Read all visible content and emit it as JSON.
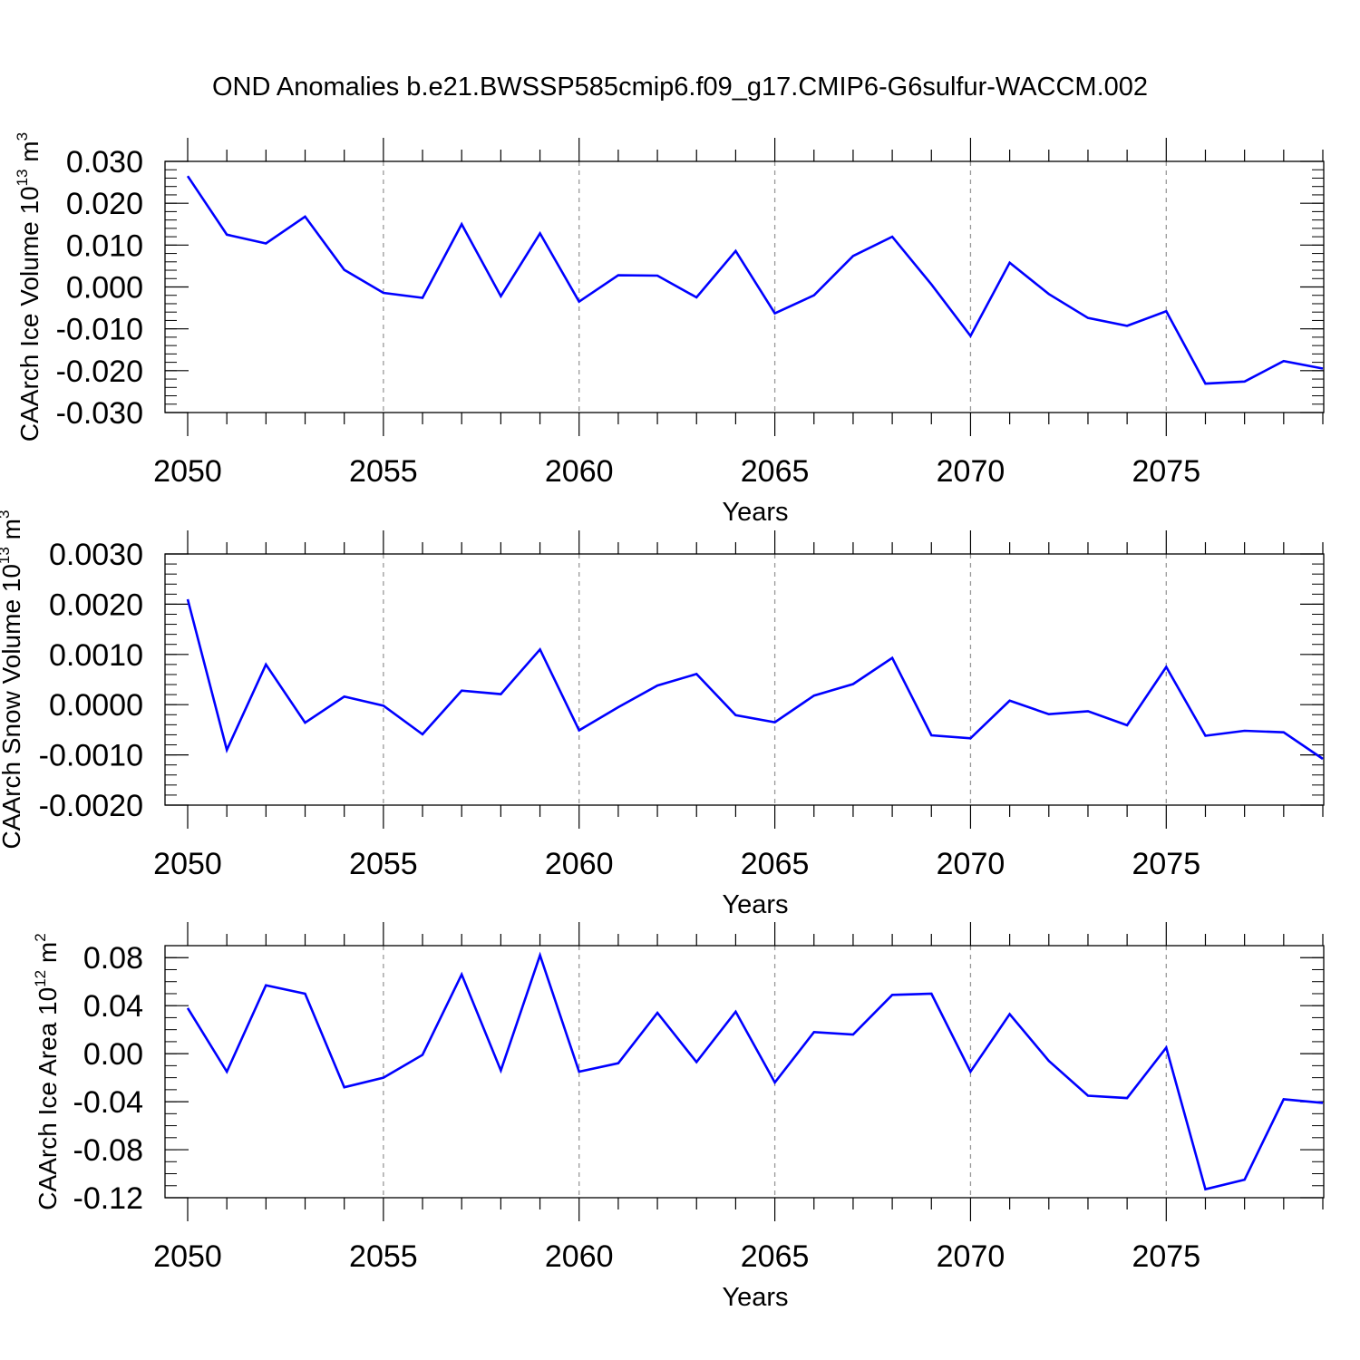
{
  "figure": {
    "title": "OND Anomalies b.e21.BWSSP585cmip6.f09_g17.CMIP6-G6sulfur-WACCM.002",
    "line_color": "#0000ff"
  },
  "chart_data": [
    {
      "type": "line",
      "title": "",
      "xlabel": "Years",
      "ylabel": "CAArch Ice Volume 10",
      "ylabel_exp": "13",
      "ylabel_unit": " m",
      "ylabel_unit_exp": "3",
      "xlim": [
        2050,
        2079
      ],
      "ylim": [
        -0.03,
        0.03
      ],
      "x_ticks": [
        2050,
        2055,
        2060,
        2065,
        2070,
        2075
      ],
      "x_tick_labels": [
        "2050",
        "2055",
        "2060",
        "2065",
        "2070",
        "2075"
      ],
      "y_ticks": [
        0.03,
        0.02,
        0.01,
        0.0,
        -0.01,
        -0.02,
        -0.03
      ],
      "y_tick_labels": [
        "0.030",
        "0.020",
        "0.010",
        "0.000",
        "-0.010",
        "-0.020",
        "-0.030"
      ],
      "y_minor_step": 0.002,
      "grid": "vertical dashed at major x ticks",
      "x": [
        2050,
        2051,
        2052,
        2053,
        2054,
        2055,
        2056,
        2057,
        2058,
        2059,
        2060,
        2061,
        2062,
        2063,
        2064,
        2065,
        2066,
        2067,
        2068,
        2069,
        2070,
        2071,
        2072,
        2073,
        2074,
        2075,
        2076,
        2077,
        2078,
        2079
      ],
      "series": [
        {
          "values": [
            0.0265,
            0.0125,
            0.0104,
            0.0168,
            0.0041,
            -0.0014,
            -0.0026,
            0.015,
            -0.0022,
            0.0128,
            -0.0035,
            0.0028,
            0.0027,
            -0.0025,
            0.0086,
            -0.0063,
            -0.002,
            0.0074,
            0.012,
            0.0006,
            -0.0117,
            0.0058,
            -0.0017,
            -0.0074,
            -0.0093,
            -0.0058,
            -0.0231,
            -0.0226,
            -0.0177,
            -0.0195
          ]
        }
      ]
    },
    {
      "type": "line",
      "title": "",
      "xlabel": "Years",
      "ylabel": "CAArch Snow Volume 10",
      "ylabel_exp": "13",
      "ylabel_unit": " m",
      "ylabel_unit_exp": "3",
      "xlim": [
        2050,
        2079
      ],
      "ylim": [
        -0.002,
        0.003
      ],
      "x_ticks": [
        2050,
        2055,
        2060,
        2065,
        2070,
        2075
      ],
      "x_tick_labels": [
        "2050",
        "2055",
        "2060",
        "2065",
        "2070",
        "2075"
      ],
      "y_ticks": [
        0.003,
        0.002,
        0.001,
        0.0,
        -0.001,
        -0.002
      ],
      "y_tick_labels": [
        "0.0030",
        "0.0020",
        "0.0010",
        "0.0000",
        "-0.0010",
        "-0.0020"
      ],
      "y_minor_step": 0.0002,
      "grid": "vertical dashed at major x ticks",
      "x": [
        2050,
        2051,
        2052,
        2053,
        2054,
        2055,
        2056,
        2057,
        2058,
        2059,
        2060,
        2061,
        2062,
        2063,
        2064,
        2065,
        2066,
        2067,
        2068,
        2069,
        2070,
        2071,
        2072,
        2073,
        2074,
        2075,
        2076,
        2077,
        2078,
        2079
      ],
      "series": [
        {
          "values": [
            0.0021,
            -0.0009,
            0.0008,
            -0.00036,
            0.00016,
            -2e-05,
            -0.00059,
            0.00028,
            0.00021,
            0.0011,
            -0.00051,
            -5e-05,
            0.00038,
            0.00061,
            -0.00021,
            -0.00035,
            0.00018,
            0.00041,
            0.00093,
            -0.00061,
            -0.00067,
            8e-05,
            -0.00019,
            -0.00013,
            -0.00041,
            0.00075,
            -0.00062,
            -0.00052,
            -0.00055,
            -0.00108
          ]
        }
      ]
    },
    {
      "type": "line",
      "title": "",
      "xlabel": "Years",
      "ylabel": "CAArch Ice Area 10",
      "ylabel_exp": "12",
      "ylabel_unit": " m",
      "ylabel_unit_exp": "2",
      "xlim": [
        2050,
        2079
      ],
      "ylim": [
        -0.12,
        0.09
      ],
      "x_ticks": [
        2050,
        2055,
        2060,
        2065,
        2070,
        2075
      ],
      "x_tick_labels": [
        "2050",
        "2055",
        "2060",
        "2065",
        "2070",
        "2075"
      ],
      "y_ticks": [
        0.08,
        0.04,
        0.0,
        -0.04,
        -0.08,
        -0.12
      ],
      "y_tick_labels": [
        "0.08",
        "0.04",
        "0.00",
        "-0.04",
        "-0.08",
        "-0.12"
      ],
      "y_minor_step": 0.01,
      "grid": "vertical dashed at major x ticks",
      "x": [
        2050,
        2051,
        2052,
        2053,
        2054,
        2055,
        2056,
        2057,
        2058,
        2059,
        2060,
        2061,
        2062,
        2063,
        2064,
        2065,
        2066,
        2067,
        2068,
        2069,
        2070,
        2071,
        2072,
        2073,
        2074,
        2075,
        2076,
        2077,
        2078,
        2079
      ],
      "series": [
        {
          "values": [
            0.038,
            -0.015,
            0.057,
            0.05,
            -0.028,
            -0.02,
            -0.001,
            0.066,
            -0.014,
            0.082,
            -0.015,
            -0.008,
            0.034,
            -0.007,
            0.035,
            -0.024,
            0.018,
            0.016,
            0.049,
            0.05,
            -0.015,
            0.033,
            -0.006,
            -0.035,
            -0.037,
            0.005,
            -0.113,
            -0.105,
            -0.038,
            -0.041
          ]
        }
      ]
    }
  ]
}
